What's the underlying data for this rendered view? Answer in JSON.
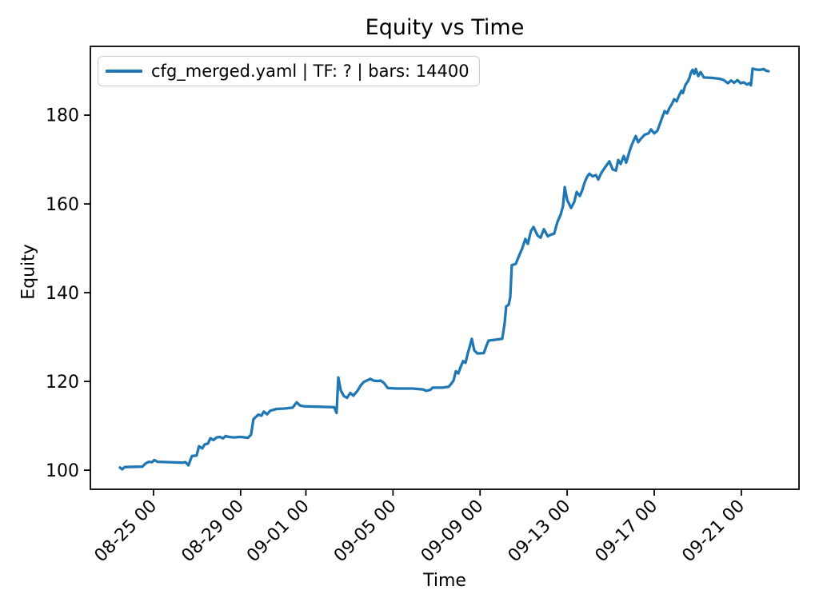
{
  "figure": {
    "background": "#ffffff"
  },
  "legend": {
    "label": "cfg_merged.yaml | TF: ? | bars: 14400",
    "swatch_color": "#1f77b4",
    "position": "upper left"
  },
  "chart_data": {
    "type": "line",
    "title": "Equity vs Time",
    "xlabel": "Time",
    "ylabel": "Equity",
    "grid": false,
    "legend_position": "upper left",
    "line_color": "#1f77b4",
    "x_tick_labels": [
      "08-25 00",
      "08-29 00",
      "09-01 00",
      "09-05 00",
      "09-09 00",
      "09-13 00",
      "09-17 00",
      "09-21 00"
    ],
    "y_ticks": [
      100,
      120,
      140,
      160,
      180
    ],
    "xlim": [
      "08-22 02:24",
      "09-23 15:36"
    ],
    "ylim": [
      95.7,
      195.5
    ],
    "series": [
      {
        "name": "cfg_merged.yaml | TF: ? | bars: 14400",
        "color": "#1f77b4",
        "points": [
          [
            "08-23 11:00",
            100.6
          ],
          [
            "08-23 13:30",
            100.2
          ],
          [
            "08-23 16:15",
            100.7
          ],
          [
            "08-24 11:45",
            100.8
          ],
          [
            "08-24 15:10",
            101.5
          ],
          [
            "08-24 18:45",
            101.9
          ],
          [
            "08-24 22:15",
            101.8
          ],
          [
            "08-25 01:00",
            102.3
          ],
          [
            "08-25 04:25",
            101.9
          ],
          [
            "08-25 18:30",
            101.8
          ],
          [
            "08-26 07:45",
            101.7
          ],
          [
            "08-26 11:15",
            101.8
          ],
          [
            "08-26 14:30",
            101.1
          ],
          [
            "08-26 18:15",
            103.2
          ],
          [
            "08-26 23:30",
            103.3
          ],
          [
            "08-27 02:10",
            105.4
          ],
          [
            "08-27 05:45",
            104.9
          ],
          [
            "08-27 08:25",
            105.8
          ],
          [
            "08-27 12:00",
            106.0
          ],
          [
            "08-27 14:40",
            107.2
          ],
          [
            "08-27 18:10",
            106.8
          ],
          [
            "08-27 21:40",
            107.4
          ],
          [
            "08-28 01:10",
            107.5
          ],
          [
            "08-28 04:45",
            107.2
          ],
          [
            "08-28 07:25",
            107.7
          ],
          [
            "08-28 10:50",
            107.5
          ],
          [
            "08-28 17:00",
            107.4
          ],
          [
            "08-29 00:00",
            107.5
          ],
          [
            "08-29 08:05",
            107.3
          ],
          [
            "08-29 11:30",
            108.0
          ],
          [
            "08-29 14:10",
            111.5
          ],
          [
            "08-29 16:50",
            112.0
          ],
          [
            "08-29 19:30",
            112.5
          ],
          [
            "08-29 23:00",
            112.3
          ],
          [
            "08-30 01:40",
            113.2
          ],
          [
            "08-30 05:15",
            112.6
          ],
          [
            "08-30 08:40",
            113.4
          ],
          [
            "08-30 12:15",
            113.6
          ],
          [
            "08-30 15:50",
            113.8
          ],
          [
            "08-31 00:30",
            113.9
          ],
          [
            "08-31 09:25",
            114.1
          ],
          [
            "08-31 13:50",
            115.3
          ],
          [
            "08-31 17:20",
            114.6
          ],
          [
            "08-31 21:45",
            114.4
          ],
          [
            "09-01 11:45",
            114.3
          ],
          [
            "09-02 07:10",
            114.2
          ],
          [
            "09-02 09:50",
            112.9
          ],
          [
            "09-02 11:45",
            120.9
          ],
          [
            "09-02 14:20",
            118.0
          ],
          [
            "09-02 17:50",
            116.7
          ],
          [
            "09-02 21:20",
            116.3
          ],
          [
            "09-03 01:00",
            117.4
          ],
          [
            "09-03 04:20",
            116.8
          ],
          [
            "09-03 08:50",
            117.9
          ],
          [
            "09-03 12:25",
            119.1
          ],
          [
            "09-03 15:50",
            119.9
          ],
          [
            "09-03 20:20",
            120.3
          ],
          [
            "09-03 23:00",
            120.6
          ],
          [
            "09-04 02:25",
            120.2
          ],
          [
            "09-04 06:55",
            120.1
          ],
          [
            "09-04 10:20",
            120.2
          ],
          [
            "09-04 13:55",
            119.7
          ],
          [
            "09-04 16:30",
            119.0
          ],
          [
            "09-04 18:15",
            118.5
          ],
          [
            "09-05 04:00",
            118.4
          ],
          [
            "09-05 21:40",
            118.4
          ],
          [
            "09-06 09:05",
            118.2
          ],
          [
            "09-06 12:40",
            117.9
          ],
          [
            "09-06 17:00",
            118.1
          ],
          [
            "09-06 19:40",
            118.6
          ],
          [
            "09-07 06:15",
            118.6
          ],
          [
            "09-07 13:25",
            118.8
          ],
          [
            "09-07 16:00",
            119.4
          ],
          [
            "09-07 18:40",
            120.2
          ],
          [
            "09-07 21:20",
            122.3
          ],
          [
            "09-08 00:00",
            121.8
          ],
          [
            "09-08 02:40",
            123.3
          ],
          [
            "09-08 05:20",
            124.6
          ],
          [
            "09-08 07:55",
            124.2
          ],
          [
            "09-08 10:35",
            126.4
          ],
          [
            "09-08 13:15",
            128.3
          ],
          [
            "09-08 14:55",
            129.6
          ],
          [
            "09-08 17:35",
            127.0
          ],
          [
            "09-08 21:05",
            126.3
          ],
          [
            "09-09 04:10",
            126.4
          ],
          [
            "09-09 06:45",
            127.9
          ],
          [
            "09-09 09:25",
            129.2
          ],
          [
            "09-09 17:20",
            129.4
          ],
          [
            "09-10 00:25",
            129.6
          ],
          [
            "09-10 03:05",
            133.0
          ],
          [
            "09-10 04:50",
            136.9
          ],
          [
            "09-10 07:30",
            137.3
          ],
          [
            "09-10 09:20",
            139.0
          ],
          [
            "09-10 11:00",
            146.2
          ],
          [
            "09-10 15:25",
            146.5
          ],
          [
            "09-10 18:55",
            148.3
          ],
          [
            "09-10 22:30",
            150.0
          ],
          [
            "09-11 02:00",
            152.1
          ],
          [
            "09-11 04:35",
            151.0
          ],
          [
            "09-11 08:10",
            153.9
          ],
          [
            "09-11 10:50",
            154.8
          ],
          [
            "09-11 15:20",
            152.9
          ],
          [
            "09-11 18:45",
            152.4
          ],
          [
            "09-11 22:20",
            154.3
          ],
          [
            "09-12 02:40",
            152.7
          ],
          [
            "09-12 06:10",
            153.1
          ],
          [
            "09-12 09:45",
            153.3
          ],
          [
            "09-12 13:15",
            155.9
          ],
          [
            "09-12 16:50",
            157.6
          ],
          [
            "09-12 19:25",
            159.5
          ],
          [
            "09-12 21:20",
            163.8
          ],
          [
            "09-13 00:00",
            160.9
          ],
          [
            "09-13 04:20",
            159.1
          ],
          [
            "09-13 07:55",
            160.5
          ],
          [
            "09-13 10:30",
            162.7
          ],
          [
            "09-13 14:00",
            161.8
          ],
          [
            "09-13 16:40",
            163.1
          ],
          [
            "09-13 19:15",
            164.8
          ],
          [
            "09-13 21:55",
            166.1
          ],
          [
            "09-14 00:30",
            166.8
          ],
          [
            "09-14 04:05",
            166.2
          ],
          [
            "09-14 07:40",
            166.5
          ],
          [
            "09-14 10:15",
            165.5
          ],
          [
            "09-14 13:45",
            167.0
          ],
          [
            "09-14 17:20",
            168.1
          ],
          [
            "09-14 22:35",
            169.6
          ],
          [
            "09-15 02:10",
            167.8
          ],
          [
            "09-15 05:45",
            167.5
          ],
          [
            "09-15 08:20",
            169.9
          ],
          [
            "09-15 11:00",
            169.0
          ],
          [
            "09-15 14:25",
            170.8
          ],
          [
            "09-15 17:05",
            169.3
          ],
          [
            "09-15 20:40",
            171.8
          ],
          [
            "09-15 23:15",
            173.3
          ],
          [
            "09-16 03:40",
            175.3
          ],
          [
            "09-16 06:15",
            173.9
          ],
          [
            "09-16 08:55",
            174.6
          ],
          [
            "09-16 13:25",
            175.6
          ],
          [
            "09-16 17:45",
            175.9
          ],
          [
            "09-16 20:25",
            176.8
          ],
          [
            "09-17 00:00",
            175.9
          ],
          [
            "09-17 03:30",
            176.5
          ],
          [
            "09-17 06:10",
            178.0
          ],
          [
            "09-17 08:50",
            179.5
          ],
          [
            "09-17 11:30",
            180.9
          ],
          [
            "09-17 14:05",
            180.4
          ],
          [
            "09-17 16:45",
            181.6
          ],
          [
            "09-17 19:25",
            182.5
          ],
          [
            "09-17 22:00",
            183.6
          ],
          [
            "09-18 00:40",
            183.1
          ],
          [
            "09-18 03:20",
            184.4
          ],
          [
            "09-18 06:00",
            185.5
          ],
          [
            "09-18 07:40",
            185.0
          ],
          [
            "09-18 10:20",
            186.8
          ],
          [
            "09-18 13:00",
            187.6
          ],
          [
            "09-18 14:50",
            188.4
          ],
          [
            "09-18 16:30",
            189.6
          ],
          [
            "09-18 18:15",
            190.2
          ],
          [
            "09-18 20:05",
            189.3
          ],
          [
            "09-18 21:50",
            190.4
          ],
          [
            "09-19 00:30",
            188.8
          ],
          [
            "09-19 03:10",
            189.7
          ],
          [
            "09-19 06:40",
            188.5
          ],
          [
            "09-19 15:30",
            188.4
          ],
          [
            "09-20 00:15",
            188.2
          ],
          [
            "09-20 04:45",
            187.9
          ],
          [
            "09-20 09:10",
            187.2
          ],
          [
            "09-20 12:40",
            187.8
          ],
          [
            "09-20 16:05",
            187.3
          ],
          [
            "09-20 19:40",
            187.9
          ],
          [
            "09-20 23:10",
            187.2
          ],
          [
            "09-21 02:40",
            187.4
          ],
          [
            "09-21 06:15",
            186.9
          ],
          [
            "09-21 08:50",
            187.2
          ],
          [
            "09-21 10:35",
            186.7
          ],
          [
            "09-21 12:25",
            190.5
          ],
          [
            "09-21 15:50",
            190.3
          ],
          [
            "09-21 20:20",
            190.2
          ],
          [
            "09-22 00:45",
            190.4
          ],
          [
            "09-22 03:20",
            190.0
          ],
          [
            "09-22 06:00",
            189.9
          ]
        ]
      }
    ]
  }
}
